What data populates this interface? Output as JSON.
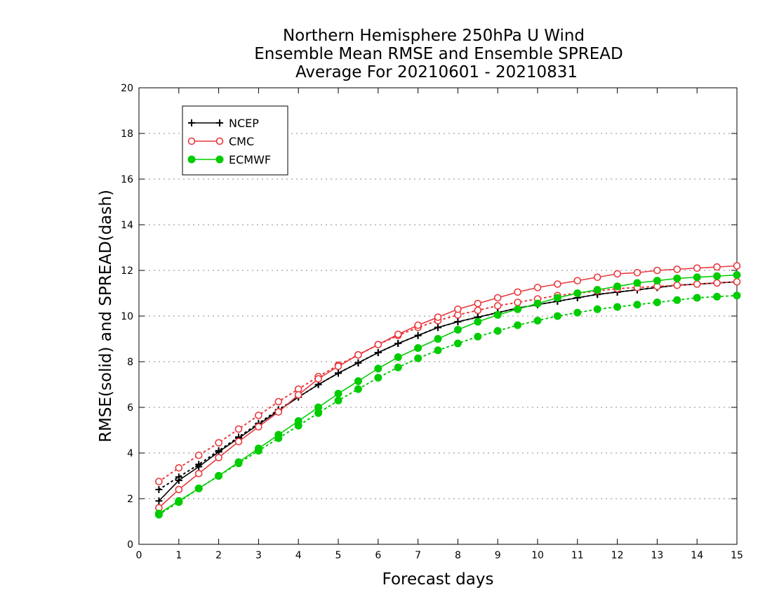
{
  "chart_data": {
    "type": "line",
    "title": [
      "Northern Hemisphere 250hPa U Wind",
      "Ensemble Mean RMSE and Ensemble SPREAD",
      "Average For 20210601 - 20210831"
    ],
    "xlabel": "Forecast days",
    "ylabel": "RMSE(solid) and SPREAD(dash)",
    "xlim": [
      0,
      15
    ],
    "ylim": [
      0,
      20
    ],
    "xticks": [
      0,
      1,
      2,
      3,
      4,
      5,
      6,
      7,
      8,
      9,
      10,
      11,
      12,
      13,
      14,
      15
    ],
    "yticks": [
      0,
      2,
      4,
      6,
      8,
      10,
      12,
      14,
      16,
      18,
      20
    ],
    "grid": true,
    "legend_position": "top-left",
    "x": [
      0.5,
      1,
      1.5,
      2,
      2.5,
      3,
      3.5,
      4,
      4.5,
      5,
      5.5,
      6,
      6.5,
      7,
      7.5,
      8,
      8.5,
      9,
      9.5,
      10,
      10.5,
      11,
      11.5,
      12,
      12.5,
      13,
      13.5,
      14,
      14.5,
      15
    ],
    "series": [
      {
        "name": "NCEP",
        "color": "#000000",
        "marker": "plus",
        "rmse": [
          1.9,
          2.8,
          3.4,
          4.05,
          4.65,
          5.25,
          5.85,
          6.45,
          7.0,
          7.5,
          7.95,
          8.4,
          8.8,
          9.15,
          9.5,
          9.75,
          9.95,
          10.15,
          10.35,
          10.5,
          10.65,
          10.8,
          10.95,
          11.05,
          11.15,
          11.25,
          11.35,
          11.4,
          11.45,
          11.5
        ],
        "spread": [
          2.4,
          2.95,
          3.5,
          4.1,
          4.7,
          5.3,
          5.9,
          6.45,
          7.0,
          7.5,
          7.95,
          8.4,
          8.8,
          9.15,
          9.5,
          9.75,
          9.95,
          10.15,
          10.35,
          10.5,
          10.65,
          10.8,
          10.95,
          11.05,
          11.15,
          11.25,
          11.35,
          11.4,
          11.45,
          11.5
        ]
      },
      {
        "name": "CMC",
        "color": "#e8383d",
        "marker": "open-circle",
        "rmse": [
          1.6,
          2.4,
          3.1,
          3.8,
          4.5,
          5.15,
          5.8,
          6.55,
          7.25,
          7.8,
          8.3,
          8.75,
          9.2,
          9.6,
          9.95,
          10.3,
          10.55,
          10.8,
          11.05,
          11.25,
          11.4,
          11.55,
          11.7,
          11.85,
          11.9,
          12.0,
          12.05,
          12.1,
          12.15,
          12.2
        ],
        "spread": [
          2.75,
          3.35,
          3.9,
          4.45,
          5.05,
          5.65,
          6.25,
          6.8,
          7.35,
          7.85,
          8.3,
          8.75,
          9.15,
          9.5,
          9.8,
          10.05,
          10.25,
          10.45,
          10.6,
          10.75,
          10.9,
          11.0,
          11.1,
          11.2,
          11.25,
          11.3,
          11.35,
          11.4,
          11.45,
          11.5
        ]
      },
      {
        "name": "ECMWF",
        "color": "#00cc00",
        "marker": "filled-circle",
        "rmse": [
          1.35,
          1.9,
          2.45,
          3.0,
          3.6,
          4.2,
          4.8,
          5.4,
          6.0,
          6.6,
          7.15,
          7.7,
          8.2,
          8.6,
          9.0,
          9.4,
          9.75,
          10.05,
          10.3,
          10.55,
          10.8,
          11.0,
          11.15,
          11.3,
          11.45,
          11.55,
          11.65,
          11.7,
          11.75,
          11.8
        ],
        "spread": [
          1.3,
          1.85,
          2.45,
          3.0,
          3.55,
          4.1,
          4.65,
          5.2,
          5.75,
          6.3,
          6.8,
          7.3,
          7.75,
          8.15,
          8.5,
          8.8,
          9.1,
          9.35,
          9.6,
          9.8,
          10.0,
          10.15,
          10.3,
          10.4,
          10.5,
          10.6,
          10.7,
          10.8,
          10.85,
          10.9
        ]
      }
    ]
  }
}
